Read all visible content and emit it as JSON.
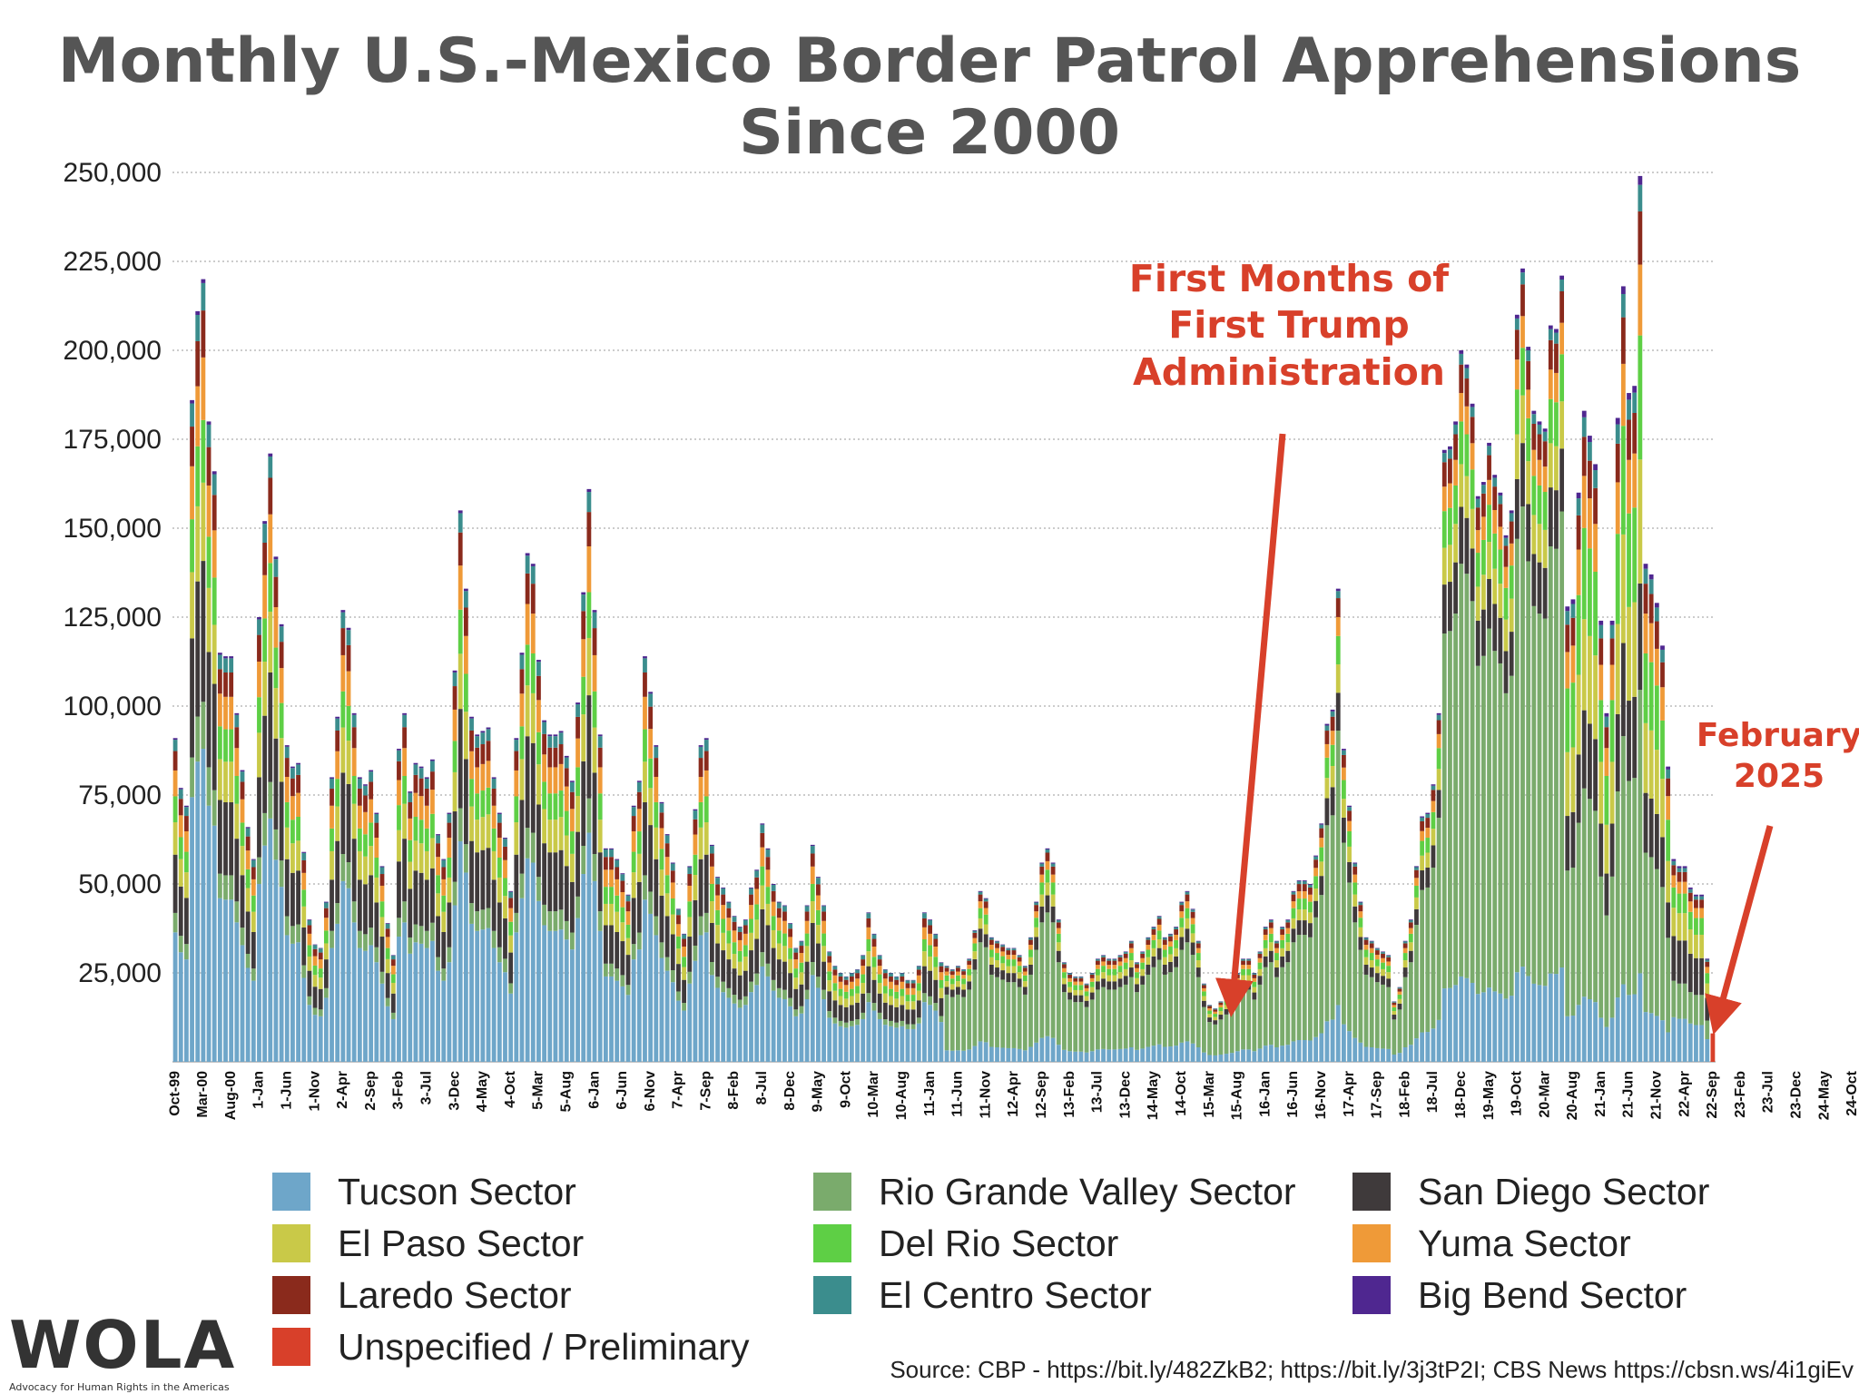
{
  "chart_data": {
    "type": "bar",
    "stacked": true,
    "title": "Monthly U.S.-Mexico Border Patrol Apprehensions Since 2000",
    "ylim": [
      0,
      250000
    ],
    "yticks": [
      "25,000",
      "50,000",
      "75,000",
      "100,000",
      "125,000",
      "150,000",
      "175,000",
      "200,000",
      "225,000",
      "250,000"
    ],
    "ytick_values": [
      25000,
      50000,
      75000,
      100000,
      125000,
      150000,
      175000,
      200000,
      225000,
      250000
    ],
    "grid": true,
    "legend_position": "bottom",
    "xtick_labels": [
      "Oct-99",
      "Mar-00",
      "Aug-00",
      "1-Jan",
      "1-Jun",
      "1-Nov",
      "2-Apr",
      "2-Sep",
      "3-Feb",
      "3-Jul",
      "3-Dec",
      "4-May",
      "4-Oct",
      "5-Mar",
      "5-Aug",
      "6-Jan",
      "6-Jun",
      "6-Nov",
      "7-Apr",
      "7-Sep",
      "8-Feb",
      "8-Jul",
      "8-Dec",
      "9-May",
      "9-Oct",
      "10-Mar",
      "10-Aug",
      "11-Jan",
      "11-Jun",
      "11-Nov",
      "12-Apr",
      "12-Sep",
      "13-Feb",
      "13-Jul",
      "13-Dec",
      "14-May",
      "14-Oct",
      "15-Mar",
      "15-Aug",
      "16-Jan",
      "16-Jun",
      "16-Nov",
      "17-Apr",
      "17-Sep",
      "18-Feb",
      "18-Jul",
      "18-Dec",
      "19-May",
      "19-Oct",
      "20-Mar",
      "20-Aug",
      "21-Jan",
      "21-Jun",
      "21-Nov",
      "22-Apr",
      "22-Sep",
      "23-Feb",
      "23-Jul",
      "23-Dec",
      "24-May",
      "24-Oct"
    ],
    "series": [
      {
        "name": "Tucson Sector",
        "color": "#6ea6c9"
      },
      {
        "name": "Rio Grande Valley Sector",
        "color": "#7aab6c"
      },
      {
        "name": "San Diego Sector",
        "color": "#3f3a3b"
      },
      {
        "name": "El Paso Sector",
        "color": "#c9c948"
      },
      {
        "name": "Del Rio Sector",
        "color": "#5ecf45"
      },
      {
        "name": "Yuma Sector",
        "color": "#ef9a38"
      },
      {
        "name": "Laredo Sector",
        "color": "#8a2a1c"
      },
      {
        "name": "El Centro Sector",
        "color": "#3b8d8d"
      },
      {
        "name": "Big Bend Sector",
        "color": "#4f2790"
      },
      {
        "name": "Unspecified / Preliminary",
        "color": "#d8402a"
      }
    ],
    "monthly_totals": [
      91000,
      77000,
      72000,
      186000,
      211000,
      220000,
      180000,
      166000,
      115000,
      114000,
      114000,
      98000,
      82000,
      66000,
      57000,
      125000,
      152000,
      171000,
      142000,
      123000,
      89000,
      83000,
      84000,
      59000,
      40000,
      33000,
      32000,
      45000,
      80000,
      97000,
      127000,
      122000,
      98000,
      80000,
      78000,
      82000,
      70000,
      55000,
      39000,
      30000,
      88000,
      98000,
      76000,
      84000,
      83000,
      80000,
      85000,
      64000,
      57000,
      70000,
      110000,
      155000,
      133000,
      97000,
      92000,
      93000,
      94000,
      80000,
      70000,
      63000,
      48000,
      91000,
      115000,
      143000,
      140000,
      113000,
      96000,
      92000,
      92000,
      93000,
      86000,
      79000,
      101000,
      132000,
      161000,
      127000,
      92000,
      60000,
      60000,
      57000,
      53000,
      47000,
      72000,
      79000,
      114000,
      104000,
      89000,
      73000,
      64000,
      56000,
      43000,
      36000,
      55000,
      71000,
      89000,
      91000,
      61000,
      52000,
      49000,
      45000,
      41000,
      38000,
      40000,
      49000,
      54000,
      67000,
      60000,
      50000,
      45000,
      44000,
      39000,
      32000,
      34000,
      44000,
      61000,
      52000,
      44000,
      31000,
      27000,
      25000,
      24000,
      25000,
      26000,
      30000,
      42000,
      36000,
      30000,
      26000,
      25000,
      24000,
      25000,
      23000,
      23000,
      27000,
      42000,
      40000,
      36000,
      28000,
      27000,
      26000,
      27000,
      26000,
      29000,
      37000,
      48000,
      46000,
      35000,
      34000,
      33000,
      32000,
      32000,
      30000,
      27000,
      35000,
      45000,
      56000,
      60000,
      56000,
      40000,
      28000,
      25000,
      24000,
      24000,
      22000,
      25000,
      29000,
      30000,
      29000,
      29000,
      30000,
      31000,
      34000,
      28000,
      31000,
      35000,
      38000,
      41000,
      35000,
      36000,
      38000,
      45000,
      48000,
      43000,
      34000,
      22000,
      16000,
      15000,
      17000,
      19000,
      21000,
      25000,
      29000,
      29000,
      25000,
      31000,
      38000,
      40000,
      34000,
      38000,
      40000,
      48000,
      51000,
      51000,
      50000,
      58000,
      67000,
      95000,
      99000,
      133000,
      88000,
      72000,
      56000,
      45000,
      35000,
      34000,
      32000,
      31000,
      30000,
      17000,
      21000,
      34000,
      40000,
      55000,
      69000,
      70000,
      78000,
      98000,
      172000,
      173000,
      180000,
      200000,
      196000,
      185000,
      159000,
      163000,
      174000,
      165000,
      160000,
      148000,
      155000,
      210000,
      223000,
      201000,
      183000,
      180000,
      178000,
      207000,
      206000,
      221000,
      128000,
      130000,
      160000,
      183000,
      176000,
      168000,
      124000,
      98000,
      124000,
      181000,
      218000,
      188000,
      190000,
      249000,
      140000,
      137000,
      129000,
      117000,
      83000,
      57000,
      55000,
      55000,
      49000,
      47000,
      47000,
      29000,
      8000
    ]
  },
  "legend": [
    {
      "label": "Tucson Sector",
      "color": "#6ea6c9"
    },
    {
      "label": "Rio Grande Valley Sector",
      "color": "#7aab6c"
    },
    {
      "label": "San Diego Sector",
      "color": "#3f3a3b"
    },
    {
      "label": "El Paso Sector",
      "color": "#c9c948"
    },
    {
      "label": "Del Rio Sector",
      "color": "#5ecf45"
    },
    {
      "label": "Yuma Sector",
      "color": "#ef9a38"
    },
    {
      "label": "Laredo Sector",
      "color": "#8a2a1c"
    },
    {
      "label": "El Centro Sector",
      "color": "#3b8d8d"
    },
    {
      "label": "Big Bend Sector",
      "color": "#4f2790"
    },
    {
      "label": "Unspecified / Preliminary",
      "color": "#d8402a"
    }
  ],
  "annotations": {
    "trump_line1": "First Months of",
    "trump_line2": "First Trump",
    "trump_line3": "Administration",
    "feb_line1": "February",
    "feb_line2": "2025",
    "color": "#d8402a"
  },
  "logo": {
    "text": "WOLA",
    "subtitle": "Advocacy for Human Rights in the Americas"
  },
  "source": "Source: CBP - https://bit.ly/482ZkB2; https://bit.ly/3j3tP2I; CBS News https://cbsn.ws/4i1giEv"
}
